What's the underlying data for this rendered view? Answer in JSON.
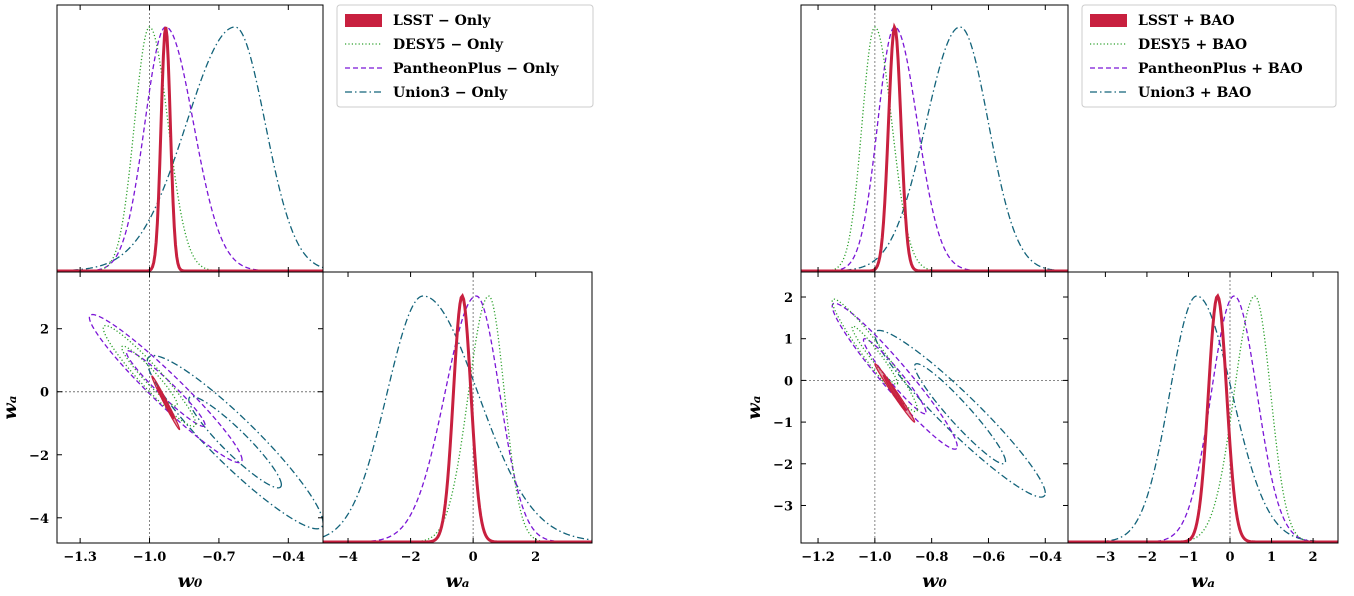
{
  "colors": {
    "lsst": "#c8203f",
    "desy5": "#2ca02c",
    "pantheon": "#7b16d6",
    "union3": "#13637a",
    "frame": "#000000",
    "refline": "#777777"
  },
  "chart_data": [
    {
      "type": "corner",
      "panel": "left",
      "params": [
        "w0",
        "wa"
      ],
      "xlabel_w0": "w₀",
      "xlabel_wa": "wₐ",
      "ylabel_wa": "wₐ",
      "w0_range": [
        -1.4,
        -0.25
      ],
      "wa_range": [
        -4.8,
        3.8
      ],
      "w0_ticks": [
        {
          "v": -1.3,
          "label": "−1.3"
        },
        {
          "v": -1.0,
          "label": "−1.0"
        },
        {
          "v": -0.7,
          "label": "−0.7"
        },
        {
          "v": -0.4,
          "label": "−0.4"
        }
      ],
      "wa_ticks_x": [
        {
          "v": -4,
          "label": "−4"
        },
        {
          "v": -2,
          "label": "−2"
        },
        {
          "v": 0,
          "label": "0"
        },
        {
          "v": 2,
          "label": "2"
        }
      ],
      "wa_ticks_y": [
        {
          "v": -4,
          "label": "−4"
        },
        {
          "v": -2,
          "label": "−2"
        },
        {
          "v": 0,
          "label": "0"
        },
        {
          "v": 2,
          "label": "2"
        }
      ],
      "reference": {
        "w0": -1.0,
        "wa": 0.0
      },
      "legend_position": "top-right",
      "series": [
        {
          "key": "lsst",
          "label": "LSST − Only",
          "style": "solid",
          "w0": {
            "mean": -0.93,
            "sd_left": 0.02,
            "sd_right": 0.02
          },
          "wa": {
            "mean": -0.35,
            "sd_left": 0.28,
            "sd_right": 0.28
          },
          "corr": -0.99,
          "contours": [
            {
              "w0_halfwidth": 0.035,
              "wa_halfwidth": 0.5
            },
            {
              "w0_halfwidth": 0.06,
              "wa_halfwidth": 0.85
            }
          ]
        },
        {
          "key": "desy5",
          "label": "DESY5 − Only",
          "style": "dotted",
          "w0": {
            "mean": -1.0,
            "sd_left": 0.065,
            "sd_right": 0.08
          },
          "wa": {
            "mean": 0.5,
            "sd_left": 0.65,
            "sd_right": 0.5
          },
          "corr": -0.95,
          "contours": [
            {
              "w0_halfwidth": 0.12,
              "wa_halfwidth": 0.95
            },
            {
              "w0_halfwidth": 0.2,
              "wa_halfwidth": 1.6
            }
          ]
        },
        {
          "key": "pantheon",
          "label": "PantheonPlus − Only",
          "style": "dashed",
          "w0": {
            "mean": -0.93,
            "sd_left": 0.09,
            "sd_right": 0.12
          },
          "wa": {
            "mean": 0.1,
            "sd_left": 1.0,
            "sd_right": 0.75
          },
          "corr": -0.96,
          "contours": [
            {
              "w0_halfwidth": 0.17,
              "wa_halfwidth": 1.2
            },
            {
              "w0_halfwidth": 0.33,
              "wa_halfwidth": 2.35
            }
          ]
        },
        {
          "key": "union3",
          "label": "Union3 − Only",
          "style": "dashdot",
          "w0": {
            "mean": -0.63,
            "sd_left": 0.21,
            "sd_right": 0.13
          },
          "wa": {
            "mean": -1.6,
            "sd_left": 1.15,
            "sd_right": 1.75
          },
          "corr": -0.93,
          "contours": [
            {
              "w0_halfwidth": 0.2,
              "wa_halfwidth": 1.45
            },
            {
              "w0_halfwidth": 0.38,
              "wa_halfwidth": 2.75
            }
          ]
        }
      ]
    },
    {
      "type": "corner",
      "panel": "right",
      "params": [
        "w0",
        "wa"
      ],
      "xlabel_w0": "w₀",
      "xlabel_wa": "wₐ",
      "ylabel_wa": "wₐ",
      "w0_range": [
        -1.26,
        -0.32
      ],
      "wa_range": [
        -3.9,
        2.6
      ],
      "w0_ticks": [
        {
          "v": -1.2,
          "label": "−1.2"
        },
        {
          "v": -1.0,
          "label": "−1.0"
        },
        {
          "v": -0.8,
          "label": "−0.8"
        },
        {
          "v": -0.6,
          "label": "−0.6"
        },
        {
          "v": -0.4,
          "label": "−0.4"
        }
      ],
      "wa_ticks_x": [
        {
          "v": -3,
          "label": "−3"
        },
        {
          "v": -2,
          "label": "−2"
        },
        {
          "v": -1,
          "label": "−1"
        },
        {
          "v": 0,
          "label": "0"
        },
        {
          "v": 1,
          "label": "1"
        },
        {
          "v": 2,
          "label": "2"
        }
      ],
      "wa_ticks_y": [
        {
          "v": -3,
          "label": "−3"
        },
        {
          "v": -2,
          "label": "−2"
        },
        {
          "v": -1,
          "label": "−1"
        },
        {
          "v": 0,
          "label": "0"
        },
        {
          "v": 1,
          "label": "1"
        },
        {
          "v": 2,
          "label": "2"
        }
      ],
      "reference": {
        "w0": -1.0,
        "wa": 0.0
      },
      "legend_position": "top-right",
      "series": [
        {
          "key": "lsst",
          "label": "LSST + BAO",
          "style": "solid",
          "w0": {
            "mean": -0.93,
            "sd_left": 0.022,
            "sd_right": 0.022
          },
          "wa": {
            "mean": -0.3,
            "sd_left": 0.22,
            "sd_right": 0.22
          },
          "corr": -0.99,
          "contours": [
            {
              "w0_halfwidth": 0.04,
              "wa_halfwidth": 0.42
            },
            {
              "w0_halfwidth": 0.07,
              "wa_halfwidth": 0.7
            }
          ]
        },
        {
          "key": "desy5",
          "label": "DESY5 + BAO",
          "style": "dotted",
          "w0": {
            "mean": -1.0,
            "sd_left": 0.045,
            "sd_right": 0.06
          },
          "wa": {
            "mean": 0.6,
            "sd_left": 0.5,
            "sd_right": 0.38
          },
          "corr": -0.96,
          "contours": [
            {
              "w0_halfwidth": 0.08,
              "wa_halfwidth": 0.7
            },
            {
              "w0_halfwidth": 0.15,
              "wa_halfwidth": 1.35
            }
          ]
        },
        {
          "key": "pantheon",
          "label": "PantheonPlus + BAO",
          "style": "dashed",
          "w0": {
            "mean": -0.93,
            "sd_left": 0.06,
            "sd_right": 0.08
          },
          "wa": {
            "mean": 0.1,
            "sd_left": 0.55,
            "sd_right": 0.55
          },
          "corr": -0.96,
          "contours": [
            {
              "w0_halfwidth": 0.11,
              "wa_halfwidth": 0.9
            },
            {
              "w0_halfwidth": 0.22,
              "wa_halfwidth": 1.75
            }
          ]
        },
        {
          "key": "union3",
          "label": "Union3 + BAO",
          "style": "dashdot",
          "w0": {
            "mean": -0.7,
            "sd_left": 0.12,
            "sd_right": 0.1
          },
          "wa": {
            "mean": -0.8,
            "sd_left": 0.65,
            "sd_right": 0.85
          },
          "corr": -0.95,
          "contours": [
            {
              "w0_halfwidth": 0.16,
              "wa_halfwidth": 1.2
            },
            {
              "w0_halfwidth": 0.3,
              "wa_halfwidth": 2.0
            }
          ]
        }
      ]
    }
  ]
}
